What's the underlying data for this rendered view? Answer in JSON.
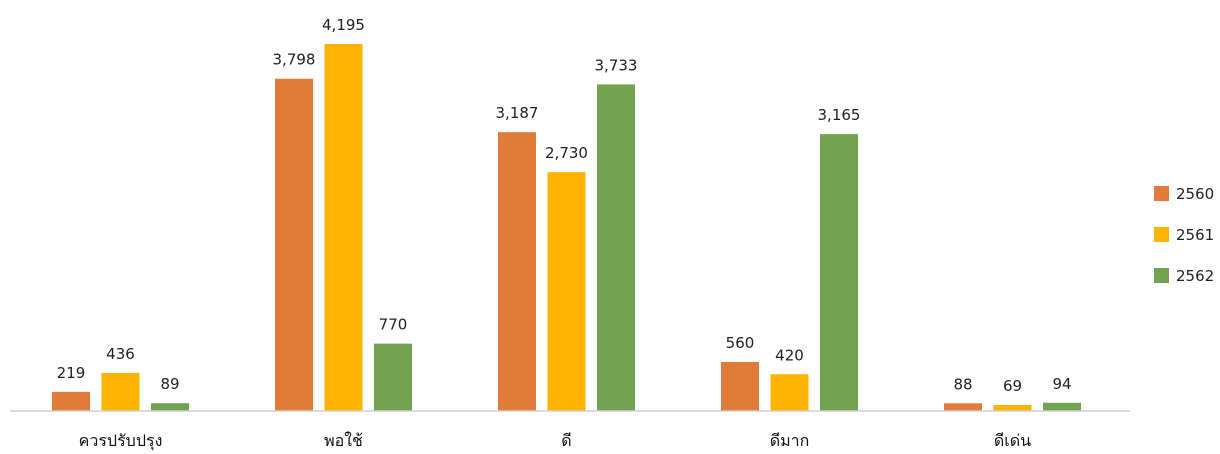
{
  "chart_data": {
    "type": "bar",
    "categories": [
      "ควรปรับปรุง",
      "พอใช้",
      "ดี",
      "ดีมาก",
      "ดีเด่น"
    ],
    "series": [
      {
        "name": "2560",
        "color": "#E07B39",
        "values": [
          219,
          3798,
          3187,
          560,
          88
        ],
        "value_labels": [
          "219",
          "3,798",
          "3,187",
          "560",
          "88"
        ]
      },
      {
        "name": "2561",
        "color": "#FDB300",
        "values": [
          436,
          4195,
          2730,
          420,
          69
        ],
        "value_labels": [
          "436",
          "4,195",
          "2,730",
          "420",
          "69"
        ]
      },
      {
        "name": "2562",
        "color": "#72A350",
        "values": [
          89,
          770,
          3733,
          3165,
          94
        ],
        "value_labels": [
          "89",
          "770",
          "3,733",
          "3,165",
          "94"
        ]
      }
    ],
    "ylim": [
      0,
      4195
    ],
    "grid": false,
    "legend_position": "right"
  }
}
